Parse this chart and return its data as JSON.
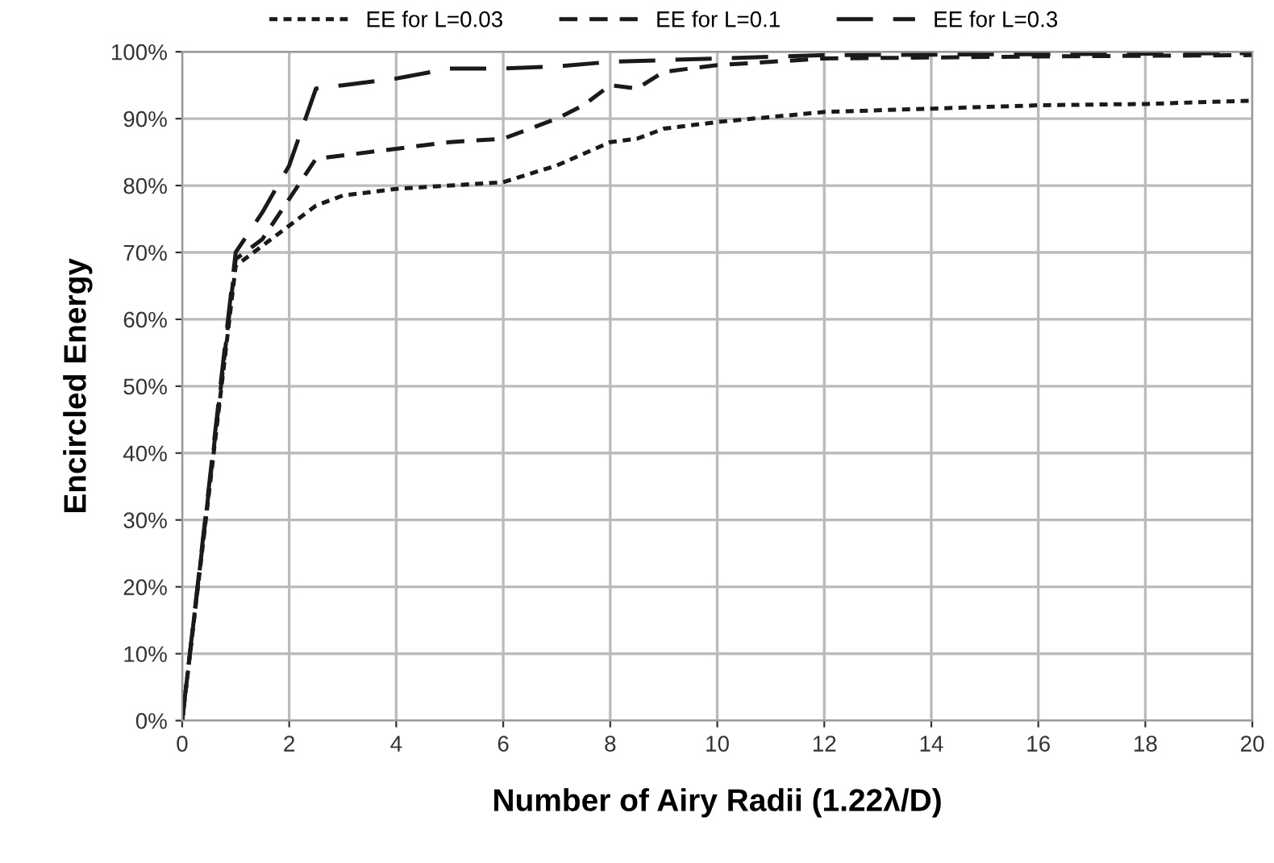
{
  "chart_data": {
    "type": "line",
    "xlabel": "Number of Airy Radii (1.22λ/D)",
    "ylabel": "Encircled Energy",
    "xlim": [
      0,
      20
    ],
    "xticks": [
      0,
      2,
      4,
      6,
      8,
      10,
      12,
      14,
      16,
      18,
      20
    ],
    "ylim": [
      0,
      100
    ],
    "yticks": [
      {
        "value": 0,
        "label": "0%"
      },
      {
        "value": 10,
        "label": "10%"
      },
      {
        "value": 20,
        "label": "20%"
      },
      {
        "value": 30,
        "label": "30%"
      },
      {
        "value": 40,
        "label": "40%"
      },
      {
        "value": 50,
        "label": "50%"
      },
      {
        "value": 60,
        "label": "60%"
      },
      {
        "value": 70,
        "label": "70%"
      },
      {
        "value": 80,
        "label": "80%"
      },
      {
        "value": 90,
        "label": "90%"
      },
      {
        "value": 100,
        "label": "100%"
      }
    ],
    "grid": true,
    "legend": "top",
    "marker": "none",
    "series": [
      {
        "name": "EE for L=0.03",
        "color": "#1a1a1a",
        "line_style": "dotted",
        "x": [
          0,
          1,
          1.5,
          2,
          2.5,
          3,
          4,
          5,
          6,
          7,
          8,
          8.5,
          9,
          10,
          12,
          14,
          16,
          18,
          20
        ],
        "values": [
          0,
          68,
          71,
          74,
          77,
          78.5,
          79.5,
          80,
          80.5,
          83,
          86.5,
          87,
          88.5,
          89.5,
          91,
          91.5,
          92,
          92.2,
          92.7
        ]
      },
      {
        "name": "EE for L=0.1",
        "color": "#1a1a1a",
        "line_style": "dashed",
        "x": [
          0,
          1,
          1.5,
          2,
          2.5,
          3,
          4,
          5,
          6,
          7,
          7.5,
          8,
          8.5,
          9,
          10,
          12,
          16,
          20
        ],
        "values": [
          0,
          69,
          72,
          78,
          84,
          84.5,
          85.5,
          86.5,
          87,
          90,
          92,
          95,
          94.5,
          97,
          98,
          99,
          99.3,
          99.5
        ]
      },
      {
        "name": "EE for L=0.3",
        "color": "#1a1a1a",
        "line_style": "long dashed",
        "x": [
          0,
          1,
          1.5,
          2,
          2.5,
          3,
          4,
          5,
          6,
          7,
          8,
          10,
          12,
          20
        ],
        "values": [
          0,
          70,
          76,
          83,
          94.5,
          95,
          96,
          97.5,
          97.5,
          97.8,
          98.5,
          99,
          99.5,
          99.8
        ]
      }
    ]
  }
}
